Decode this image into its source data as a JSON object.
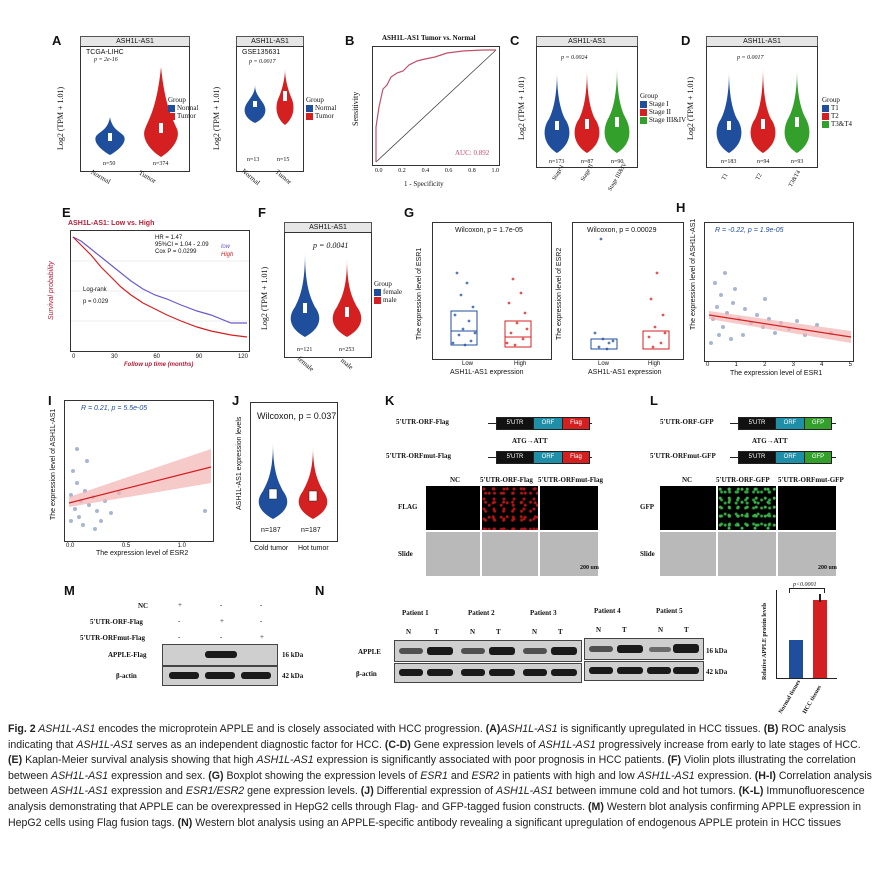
{
  "figure": "Fig. 2",
  "colors": {
    "normal": "#1f4e9c",
    "tumor": "#d42020",
    "stage3": "#33a02c",
    "female": "#1f4e9c",
    "male": "#d42020",
    "roc": "#c0506a",
    "utr": "#111",
    "orf": "#1f8fa8",
    "flag": "#d42020",
    "gfp": "#33a02c"
  },
  "panels": {
    "A": {
      "label": "A",
      "strip1": "ASH1L-AS1",
      "title1": "TCGA-LIHC",
      "p1": "p = 2e-16",
      "n1a": "n=50",
      "n1b": "n=374",
      "strip2": "ASH1L-AS1",
      "title2": "GSE135631",
      "p2": "p = 0.0017",
      "n2a": "n=13",
      "n2b": "n=15",
      "ylabel": "Log2 (TPM + 1.01)",
      "xcats": [
        "Normal",
        "Tumor"
      ],
      "legend_title": "Group",
      "legend": [
        "Normal",
        "Tumor"
      ],
      "yticks": [
        "0",
        "1",
        "2",
        "3",
        "4",
        "5",
        "6"
      ],
      "yticks2": [
        "1",
        "2",
        "3"
      ]
    },
    "B": {
      "label": "B",
      "title": "ASH1L-AS1  Tumor vs. Normal",
      "ylabel": "Sensitivity",
      "xlabel": "1 - Specificity",
      "auc": "AUC: 0.892",
      "ticks": [
        "0.0",
        "0.2",
        "0.4",
        "0.6",
        "0.8",
        "1.0"
      ]
    },
    "C": {
      "label": "C",
      "strip": "ASH1L-AS1",
      "p": "p = 0.0024",
      "ylabel": "Log2 (TPM + 1.01)",
      "xcats": [
        "Stage I",
        "Stage II",
        "Stage III&IV"
      ],
      "n": [
        "n=173",
        "n=87",
        "n=90"
      ],
      "legend_title": "Group",
      "legend": [
        "Stage I",
        "Stage II",
        "Stage III&IV"
      ],
      "yticks": [
        "0",
        "1",
        "2",
        "3",
        "4",
        "5",
        "6"
      ]
    },
    "D": {
      "label": "D",
      "strip": "ASH1L-AS1",
      "p": "p = 0.0017",
      "ylabel": "Log2 (TPM + 1.01)",
      "xcats": [
        "T1",
        "T2",
        "T3&T4"
      ],
      "n": [
        "n=183",
        "n=94",
        "n=93"
      ],
      "legend_title": "Group",
      "legend": [
        "T1",
        "T2",
        "T3&T4"
      ],
      "yticks": [
        "0",
        "1",
        "2",
        "3",
        "4",
        "5",
        "6"
      ]
    },
    "E": {
      "label": "E",
      "title": "ASH1L-AS1: Low vs. High",
      "hr": "HR = 1.47",
      "ci": "95%CI = 1.04 - 2.09",
      "cox": "Cox P = 0.0299",
      "legend": [
        "low",
        "High"
      ],
      "logrank": "Log-rank",
      "p": "p = 0.029",
      "ylabel": "Survival probability",
      "xlabel": "Follow up time (months)",
      "yticks": [
        "0.00",
        "0.25",
        "0.50",
        "0.75",
        "1.00"
      ],
      "xticks": [
        "0",
        "30",
        "60",
        "90",
        "120"
      ]
    },
    "F": {
      "label": "F",
      "strip": "ASH1L-AS1",
      "p": "p = 0.0041",
      "ylabel": "Log2 (TPM + 1.01)",
      "xcats": [
        "female",
        "male"
      ],
      "n": [
        "n=121",
        "n=253"
      ],
      "legend_title": "Group",
      "legend": [
        "female",
        "male"
      ],
      "yticks": [
        "0",
        "1",
        "2",
        "3",
        "4",
        "5",
        "6"
      ]
    },
    "G": {
      "label": "G",
      "p1": "Wilcoxon, p = 1.7e-05",
      "p2": "Wilcoxon, p = 0.00029",
      "ylabel1": "The expression level of  ESR1",
      "ylabel2": "The expression level of  ESR2",
      "xlabel": "ASH1L-AS1 expression",
      "xcats": [
        "Low",
        "High"
      ],
      "yticks1": [
        "0",
        "1",
        "2",
        "3",
        "4"
      ],
      "yticks2": [
        "0.0",
        "0.5",
        "1.0"
      ]
    },
    "H": {
      "label": "H",
      "stat": "R = -0.22, p = 1.9e-05",
      "ylabel": "The expression level of  ASH1L-AS1",
      "xlabel": "The expression level of  ESR1",
      "xticks": [
        "0",
        "1",
        "2",
        "3",
        "4",
        "5"
      ]
    },
    "I": {
      "label": "I",
      "stat": "R = 0.21, p = 5.5e-05",
      "ylabel": "The expression level of  ASH1L-AS1",
      "xlabel": "The expression level of  ESR2",
      "xticks": [
        "0.0",
        "0.5",
        "1.0"
      ]
    },
    "J": {
      "label": "J",
      "p": "Wilcoxon, p = 0.037",
      "ylabel": "ASH1L-AS1 expression levels",
      "xcats": [
        "Cold tumor",
        "Hot tumor"
      ],
      "n": [
        "n=187",
        "n=187"
      ],
      "yticks": [
        "0",
        "1",
        "2",
        "3",
        "4",
        "5"
      ]
    },
    "K": {
      "label": "K",
      "c1": "5'UTR-ORF-Flag",
      "c2": "5'UTR-ORFmut-Flag",
      "seg": [
        "5'UTR",
        "ORF",
        "Flag"
      ],
      "mut": "ATG→ATT",
      "cols": [
        "NC",
        "5'UTR-ORF-Flag",
        "5'UTR-ORFmut-Flag"
      ],
      "rows": [
        "FLAG",
        "Slide"
      ],
      "scale": "200 um"
    },
    "L": {
      "label": "L",
      "c1": "5'UTR-ORF-GFP",
      "c2": "5'UTR-ORFmut-GFP",
      "seg": [
        "5'UTR",
        "ORF",
        "GFP"
      ],
      "mut": "ATG→ATT",
      "cols": [
        "NC",
        "5'UTR-ORF-GFP",
        "5'UTR-ORFmut-GFP"
      ],
      "rows": [
        "GFP",
        "Slide"
      ],
      "scale": "200 um"
    },
    "M": {
      "label": "M",
      "rows": [
        "NC",
        "5'UTR-ORF-Flag",
        "5'UTR-ORFmut-Flag"
      ],
      "signs": [
        [
          "+",
          "-",
          "-"
        ],
        [
          "-",
          "+",
          "-"
        ],
        [
          "-",
          "-",
          "+"
        ]
      ],
      "blots": [
        "APPLE-Flag",
        "β-actin"
      ],
      "kda": [
        "16 kDa",
        "42 kDa"
      ]
    },
    "N": {
      "label": "N",
      "patients": [
        "Patient 1",
        "Patient 2",
        "Patient 3",
        "Patient 4",
        "Patient 5"
      ],
      "lanes": [
        "N",
        "T"
      ],
      "blots": [
        "APPLE",
        "β-actin"
      ],
      "kda": [
        "16 kDa",
        "42 kDa"
      ],
      "bar_ylabel": "Relative APPLE protein levels",
      "bar_p": "p<0.0001",
      "bar_cats": [
        "Normal tissues",
        "HCC tissues"
      ]
    }
  },
  "caption": {
    "fig": "Fig. 2",
    "s0": " ASH1L-AS1",
    "s1": " encodes the microprotein APPLE and is closely associated with HCC progression. ",
    "A": "(A)",
    "s2": "ASH1L-AS1",
    "s3": " is significantly upregulated in HCC tissues. ",
    "B": "(B)",
    "s4": " ROC analysis indicating that ",
    "s5": "ASH1L-AS1",
    "s6": " serves as an independent diagnostic factor for HCC. ",
    "CD": "(C-D)",
    "s7": " Gene expression levels of ",
    "s8": "ASH1L-AS1",
    "s9": " progressively increase from early to late stages of HCC. ",
    "E": "(E)",
    "s10": " Kaplan-Meier survival analysis showing that high ",
    "s11": "ASH1L-AS1",
    "s12": " expression is significantly associated with poor prognosis in HCC patients. ",
    "F": "(F)",
    "s13": " Violin plots illustrating the correlation between ",
    "s14": "ASH1L-AS1",
    "s15": " expression and sex. ",
    "G": "(G)",
    "s16": " Boxplot showing the expression levels of ",
    "s17": "ESR1",
    "s18": " and ",
    "s19": "ESR2",
    "s20": " in patients with high and low ",
    "s21": "ASH1L-AS1",
    "s22": " expression. ",
    "HI": "(H-I)",
    "s23": " Correlation analysis between ",
    "s24": "ASH1L-AS1",
    "s25": " expression and ",
    "s26": "ESR1/ESR2",
    "s27": " gene expression levels. ",
    "J": "(J)",
    "s28": " Differential expression of ",
    "s29": "ASH1L-AS1",
    "s30": " between immune cold and hot tumors. ",
    "KL": "(K-L)",
    "s31": " Immunofluorescence analysis demonstrating that APPLE can be overexpressed in HepG2 cells through Flag- and GFP-tagged fusion constructs. ",
    "M": "(M)",
    "s32": " Western blot analysis confirming APPLE expression in HepG2 cells using Flag fusion tags. ",
    "N": "(N)",
    "s33": " Western blot analysis using an APPLE-specific antibody revealing a significant upregulation of endogenous APPLE protein in HCC tissues"
  }
}
